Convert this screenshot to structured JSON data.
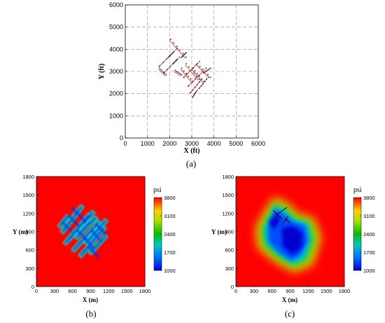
{
  "chart_data": [
    {
      "panel": "(a)",
      "type": "scatter",
      "xlabel": "X (ft)",
      "ylabel": "Y (ft)",
      "xlim": [
        0,
        6000
      ],
      "ylim": [
        0,
        6000
      ],
      "xticks": [
        "0",
        "1000",
        "2000",
        "3000",
        "4000",
        "5000",
        "6000"
      ],
      "yticks": [
        "0",
        "1000",
        "2000",
        "3000",
        "4000",
        "5000",
        "6000"
      ],
      "grid": "dashed",
      "series": [
        {
          "color": "#e0322f",
          "segments": [
            [
              [
                1500,
                3200
              ],
              [
                2300,
                4000
              ]
            ],
            [
              [
                1700,
                2900
              ],
              [
                2400,
                3600
              ]
            ],
            [
              [
                2000,
                4400
              ],
              [
                2700,
                3600
              ]
            ],
            [
              [
                1800,
                2800
              ],
              [
                1500,
                3100
              ]
            ],
            [
              [
                2100,
                3800
              ],
              [
                1900,
                3600
              ]
            ],
            [
              [
                2300,
                3500
              ],
              [
                2100,
                3300
              ]
            ],
            [
              [
                2600,
                2700
              ],
              [
                3300,
                3400
              ]
            ],
            [
              [
                2800,
                2300
              ],
              [
                3600,
                3100
              ]
            ],
            [
              [
                2500,
                3100
              ],
              [
                3000,
                2500
              ]
            ],
            [
              [
                2700,
                3300
              ],
              [
                3300,
                2600
              ]
            ],
            [
              [
                3000,
                3100
              ],
              [
                3500,
                2500
              ]
            ],
            [
              [
                3200,
                3300
              ],
              [
                3800,
                2700
              ]
            ],
            [
              [
                2900,
                2000
              ],
              [
                3400,
                2600
              ]
            ],
            [
              [
                3300,
                2200
              ],
              [
                3700,
                2700
              ]
            ],
            [
              [
                3000,
                1800
              ],
              [
                3200,
                2100
              ]
            ],
            [
              [
                2500,
                3600
              ],
              [
                2700,
                3800
              ]
            ],
            [
              [
                3500,
                2900
              ],
              [
                3800,
                3100
              ]
            ],
            [
              [
                2200,
                3000
              ],
              [
                2500,
                2800
              ]
            ]
          ]
        }
      ]
    },
    {
      "panel": "(b)",
      "type": "heatmap",
      "xlabel": "X (m)",
      "ylabel": "Y (m)",
      "xlim": [
        0,
        1800
      ],
      "ylim": [
        0,
        1800
      ],
      "xticks": [
        "0",
        "300",
        "600",
        "900",
        "1200",
        "1500",
        "1800"
      ],
      "yticks": [
        "0",
        "300",
        "600",
        "900",
        "1200",
        "1500",
        "1800"
      ],
      "colorbar": {
        "unit": "psi",
        "ticks": [
          "3800",
          "3100",
          "2400",
          "1700",
          "1000"
        ],
        "min": 1000,
        "max": 3800
      }
    },
    {
      "panel": "(c)",
      "type": "heatmap",
      "xlabel": "X (m)",
      "ylabel": "Y (m)",
      "xlim": [
        0,
        1800
      ],
      "ylim": [
        0,
        1800
      ],
      "xticks": [
        "0",
        "300",
        "600",
        "900",
        "1200",
        "1500",
        "1800"
      ],
      "yticks": [
        "0",
        "300",
        "600",
        "900",
        "1200",
        "1500",
        "1800"
      ],
      "colorbar": {
        "unit": "psi",
        "ticks": [
          "3800",
          "3100",
          "2400",
          "1700",
          "1000"
        ],
        "min": 1000,
        "max": 3800
      }
    }
  ],
  "captions": [
    "(a)",
    "(b)",
    "(c)"
  ]
}
